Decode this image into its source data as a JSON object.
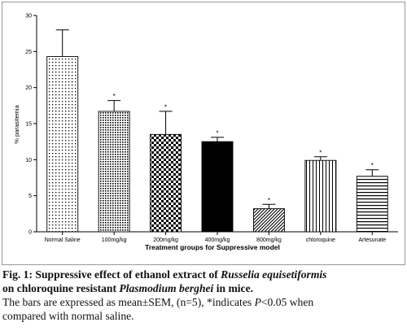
{
  "chart_data": {
    "type": "bar",
    "ylabel": "% parasitemia",
    "xlabel": "Treatment groups for Suppressive model",
    "ylim": [
      0,
      30
    ],
    "yticks": [
      0,
      5,
      10,
      15,
      20,
      25,
      30
    ],
    "grid": false,
    "categories": [
      "Normal Saline",
      "100mg/kg",
      "200mg/kg",
      "400mg/kg",
      "800mg/kg",
      "chloroquine",
      "Artesunate"
    ],
    "values": [
      24.3,
      16.7,
      13.5,
      12.5,
      3.2,
      9.9,
      7.7
    ],
    "errors": [
      3.7,
      1.5,
      3.2,
      0.6,
      0.6,
      0.5,
      0.9
    ],
    "significance": [
      "",
      "*",
      "*",
      "*",
      "*",
      "*",
      "*"
    ],
    "bar_patterns": [
      "dots",
      "crosshatch-small",
      "checker",
      "solid-black",
      "diagonal",
      "vertical-lines",
      "horizontal-lines"
    ]
  },
  "caption": {
    "line1_prefix": "Fig. 1: Suppressive effect of ethanol extract of ",
    "line1_italic": "Russelia equisetiformis",
    "line2_prefix": "on chloroquine resistant ",
    "line2_italic": "Plasmodium berghei",
    "line2_suffix": " in mice.",
    "line3_prefix": "The bars are expressed as mean±SEM, (n=5), *indicates ",
    "line3_italic": "P",
    "line3_suffix": "<0.05 when",
    "line4": "compared with normal saline."
  }
}
